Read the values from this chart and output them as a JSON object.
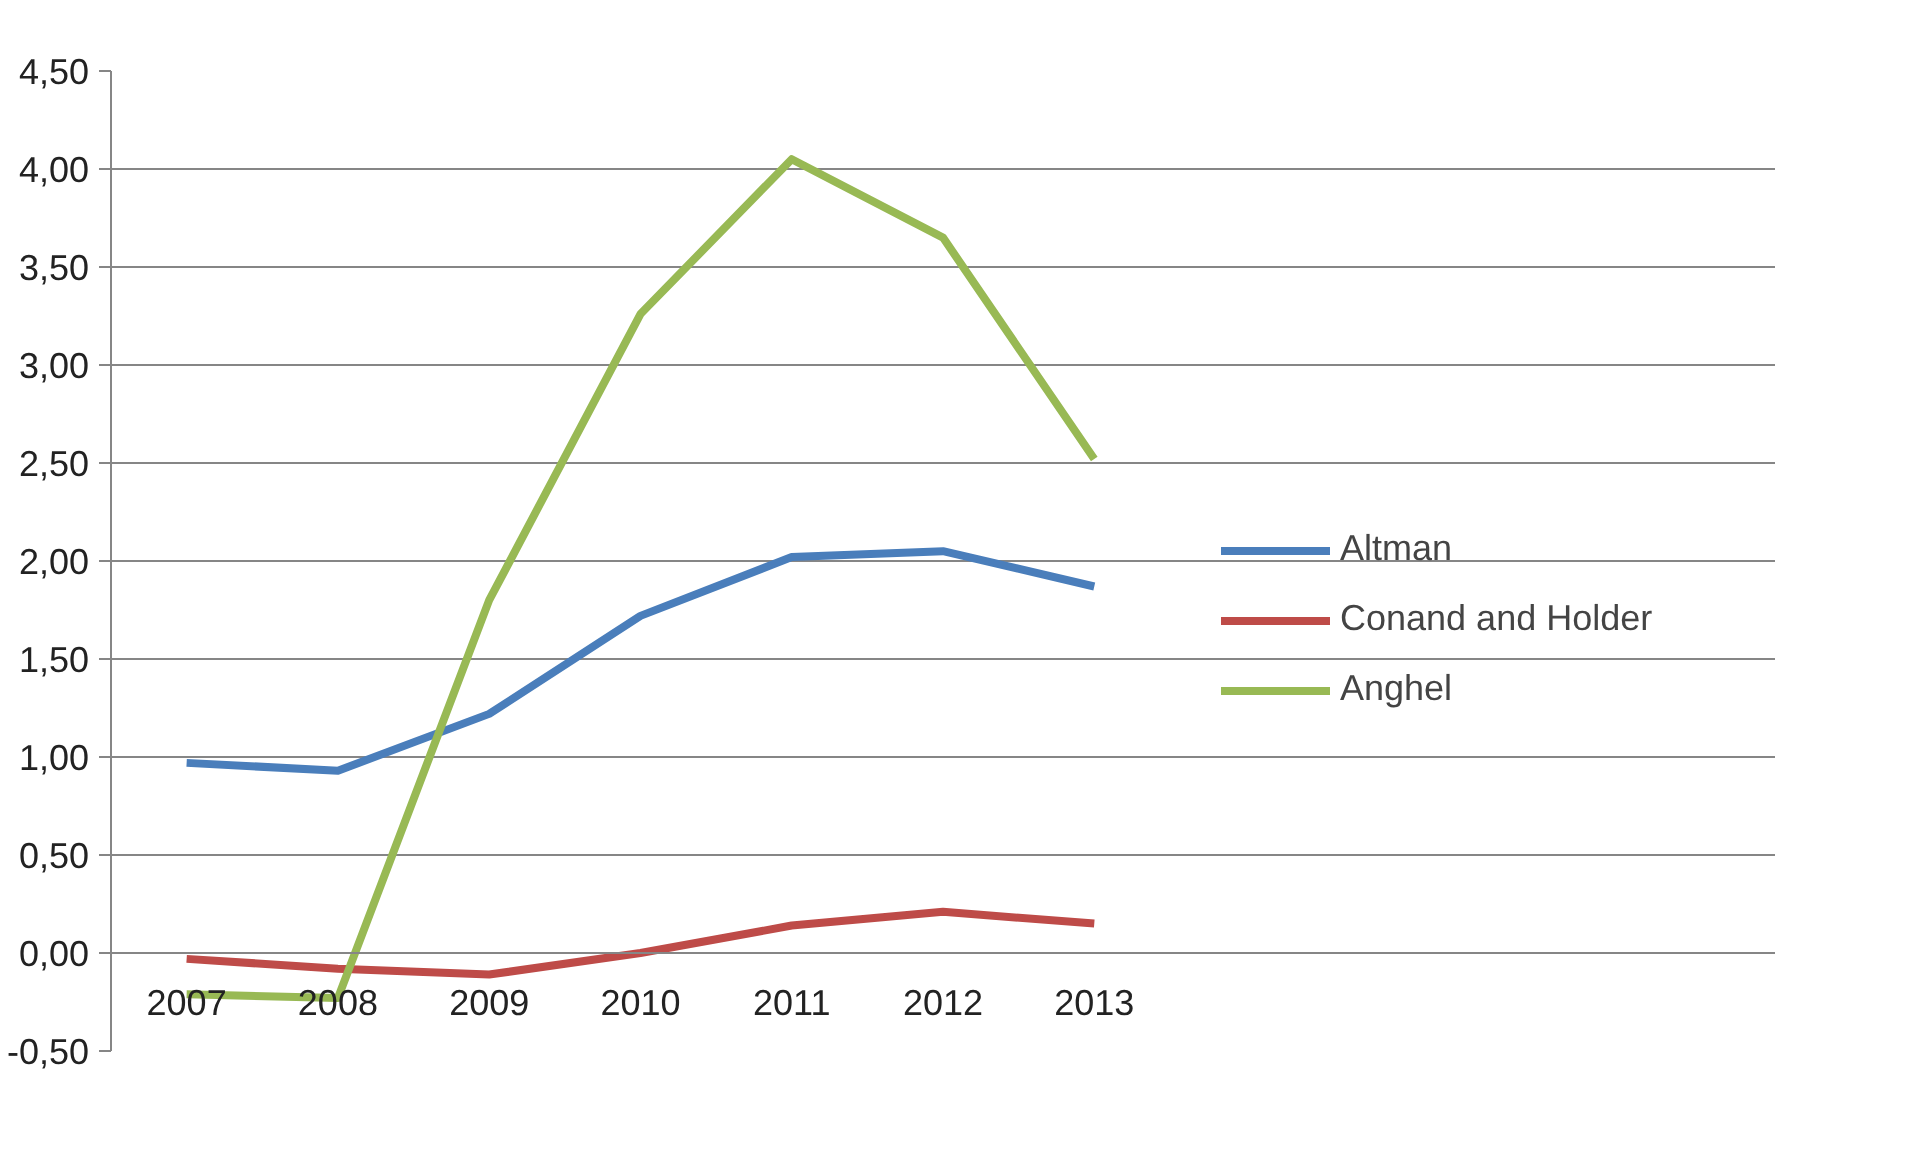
{
  "chart_data": {
    "type": "line",
    "categories": [
      "2007",
      "2008",
      "2009",
      "2010",
      "2011",
      "2012",
      "2013"
    ],
    "series": [
      {
        "name": "Altman",
        "color": "#4a7ebb",
        "values": [
          0.97,
          0.93,
          1.22,
          1.72,
          2.02,
          2.05,
          1.87
        ]
      },
      {
        "name": "Conand and Holder",
        "color": "#be4b48",
        "values": [
          -0.03,
          -0.08,
          -0.11,
          0.0,
          0.14,
          0.21,
          0.15
        ]
      },
      {
        "name": "Anghel",
        "color": "#98b954",
        "values": [
          -0.21,
          -0.23,
          1.8,
          3.26,
          4.05,
          3.65,
          2.52
        ]
      }
    ],
    "ylim": [
      -0.5,
      4.5
    ],
    "yticks": [
      {
        "value": -0.5,
        "label": "-0,50"
      },
      {
        "value": 0,
        "label": "0,00"
      },
      {
        "value": 0.5,
        "label": "0,50"
      },
      {
        "value": 1,
        "label": "1,00"
      },
      {
        "value": 1.5,
        "label": "1,50"
      },
      {
        "value": 2,
        "label": "2,00"
      },
      {
        "value": 2.5,
        "label": "2,50"
      },
      {
        "value": 3,
        "label": "3,00"
      },
      {
        "value": 3.5,
        "label": "3,50"
      },
      {
        "value": 4,
        "label": "4,00"
      },
      {
        "value": 4.5,
        "label": "4,50"
      }
    ],
    "grid": "y",
    "legend": "right",
    "marker": "none",
    "line_style": "solid"
  }
}
